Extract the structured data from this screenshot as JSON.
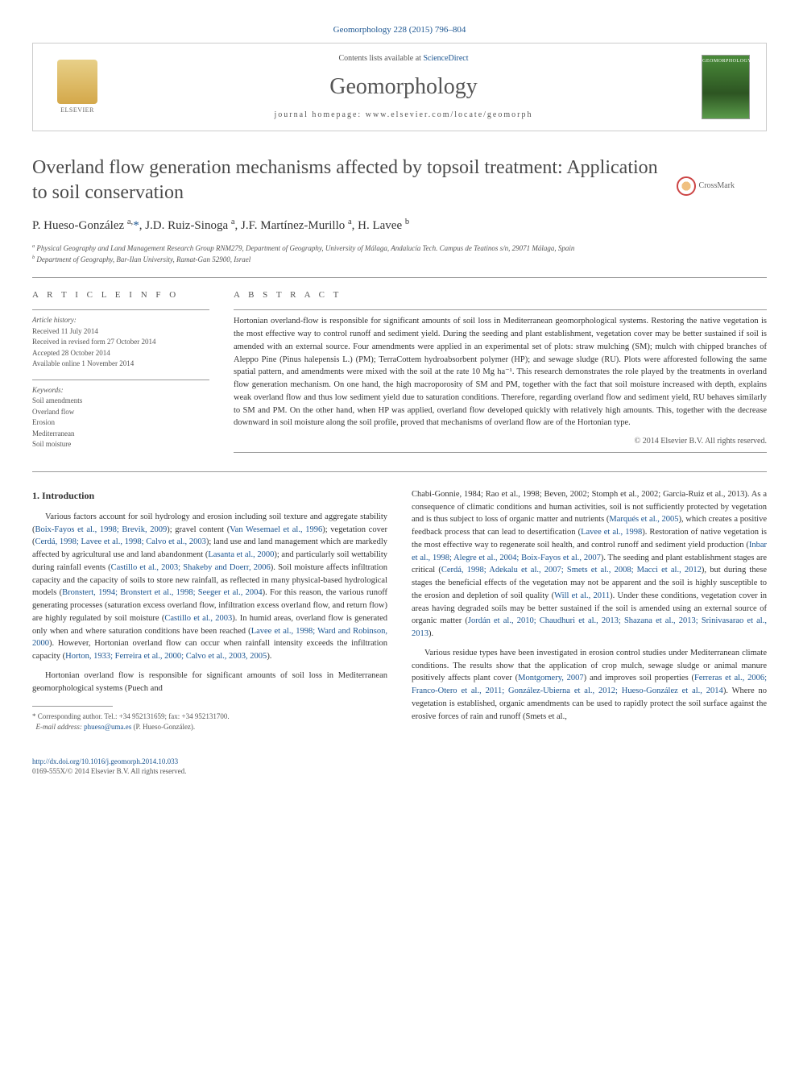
{
  "banner": {
    "citation": "Geomorphology 228 (2015) 796–804",
    "contents_prefix": "Contents lists available at ",
    "contents_link": "ScienceDirect",
    "journal_name": "Geomorphology",
    "homepage_prefix": "journal homepage: ",
    "homepage_url": "www.elsevier.com/locate/geomorph",
    "elsevier_label": "ELSEVIER",
    "cover_label": "GEOMORPHOLOGY"
  },
  "crossmark": {
    "label": "CrossMark"
  },
  "title": "Overland flow generation mechanisms affected by topsoil treatment: Application to soil conservation",
  "authors_html": "P. Hueso-González <sup>a,</sup><a>*</a>, J.D. Ruiz-Sinoga <sup>a</sup>, J.F. Martínez-Murillo <sup>a</sup>, H. Lavee <sup>b</sup>",
  "affiliations": {
    "a": "Physical Geography and Land Management Research Group RNM279, Department of Geography, University of Málaga, Andalucía Tech. Campus de Teatinos s/n, 29071 Málaga, Spain",
    "b": "Department of Geography, Bar-Ilan University, Ramat-Gan 52900, Israel"
  },
  "article_info": {
    "heading": "A R T I C L E   I N F O",
    "history_label": "Article history:",
    "history": [
      "Received 11 July 2014",
      "Received in revised form 27 October 2014",
      "Accepted 28 October 2014",
      "Available online 1 November 2014"
    ],
    "keywords_label": "Keywords:",
    "keywords": [
      "Soil amendments",
      "Overland flow",
      "Erosion",
      "Mediterranean",
      "Soil moisture"
    ]
  },
  "abstract": {
    "heading": "A B S T R A C T",
    "text": "Hortonian overland-flow is responsible for significant amounts of soil loss in Mediterranean geomorphological systems. Restoring the native vegetation is the most effective way to control runoff and sediment yield. During the seeding and plant establishment, vegetation cover may be better sustained if soil is amended with an external source. Four amendments were applied in an experimental set of plots: straw mulching (SM); mulch with chipped branches of Aleppo Pine (Pinus halepensis L.) (PM); TerraCottem hydroabsorbent polymer (HP); and sewage sludge (RU). Plots were afforested following the same spatial pattern, and amendments were mixed with the soil at the rate 10 Mg ha⁻¹. This research demonstrates the role played by the treatments in overland flow generation mechanism. On one hand, the high macroporosity of SM and PM, together with the fact that soil moisture increased with depth, explains weak overland flow and thus low sediment yield due to saturation conditions. Therefore, regarding overland flow and sediment yield, RU behaves similarly to SM and PM. On the other hand, when HP was applied, overland flow developed quickly with relatively high amounts. This, together with the decrease downward in soil moisture along the soil profile, proved that mechanisms of overland flow are of the Hortonian type.",
    "copyright": "© 2014 Elsevier B.V. All rights reserved."
  },
  "section1": {
    "heading": "1. Introduction",
    "p1": "Various factors account for soil hydrology and erosion including soil texture and aggregate stability (Boix-Fayos et al., 1998; Brevik, 2009); gravel content (Van Wesemael et al., 1996); vegetation cover (Cerdá, 1998; Lavee et al., 1998; Calvo et al., 2003); land use and land management which are markedly affected by agricultural use and land abandonment (Lasanta et al., 2000); and particularly soil wettability during rainfall events (Castillo et al., 2003; Shakeby and Doerr, 2006). Soil moisture affects infiltration capacity and the capacity of soils to store new rainfall, as reflected in many physical-based hydrological models (Bronstert, 1994; Bronstert et al., 1998; Seeger et al., 2004). For this reason, the various runoff generating processes (saturation excess overland flow, infiltration excess overland flow, and return flow) are highly regulated by soil moisture (Castillo et al., 2003). In humid areas, overland flow is generated only when and where saturation conditions have been reached (Lavee et al., 1998; Ward and Robinson, 2000). However, Hortonian overland flow can occur when rainfall intensity exceeds the infiltration capacity (Horton, 1933; Ferreira et al., 2000; Calvo et al., 2003, 2005).",
    "p2": "Hortonian overland flow is responsible for significant amounts of soil loss in Mediterranean geomorphological systems (Puech and",
    "p3": "Chabi-Gonnie, 1984; Rao et al., 1998; Beven, 2002; Stomph et al., 2002; Garcia-Ruiz et al., 2013). As a consequence of climatic conditions and human activities, soil is not sufficiently protected by vegetation and is thus subject to loss of organic matter and nutrients (Marqués et al., 2005), which creates a positive feedback process that can lead to desertification (Lavee et al., 1998). Restoration of native vegetation is the most effective way to regenerate soil health, and control runoff and sediment yield production (Inbar et al., 1998; Alegre et al., 2004; Boix-Fayos et al., 2007). The seeding and plant establishment stages are critical (Cerdá, 1998; Adekalu et al., 2007; Smets et al., 2008; Macci et al., 2012), but during these stages the beneficial effects of the vegetation may not be apparent and the soil is highly susceptible to the erosion and depletion of soil quality (Will et al., 2011). Under these conditions, vegetation cover in areas having degraded soils may be better sustained if the soil is amended using an external source of organic matter (Jordán et al., 2010; Chaudhuri et al., 2013; Shazana et al., 2013; Srinivasarao et al., 2013).",
    "p4": "Various residue types have been investigated in erosion control studies under Mediterranean climate conditions. The results show that the application of crop mulch, sewage sludge or animal manure positively affects plant cover (Montgomery, 2007) and improves soil properties (Ferreras et al., 2006; Franco-Otero et al., 2011; González-Ubierna et al., 2012; Hueso-González et al., 2014). Where no vegetation is established, organic amendments can be used to rapidly protect the soil surface against the erosive forces of rain and runoff (Smets et al.,"
  },
  "footnote": {
    "corr": "Corresponding author. Tel.: +34 952131659; fax: +34 952131700.",
    "email_label": "E-mail address:",
    "email": "phueso@uma.es",
    "email_who": "(P. Hueso-González)."
  },
  "footer": {
    "doi": "http://dx.doi.org/10.1016/j.geomorph.2014.10.033",
    "issn_line": "0169-555X/© 2014 Elsevier B.V. All rights reserved."
  },
  "colors": {
    "link": "#1a5490",
    "text": "#333333",
    "muted": "#555555",
    "border": "#999999"
  }
}
